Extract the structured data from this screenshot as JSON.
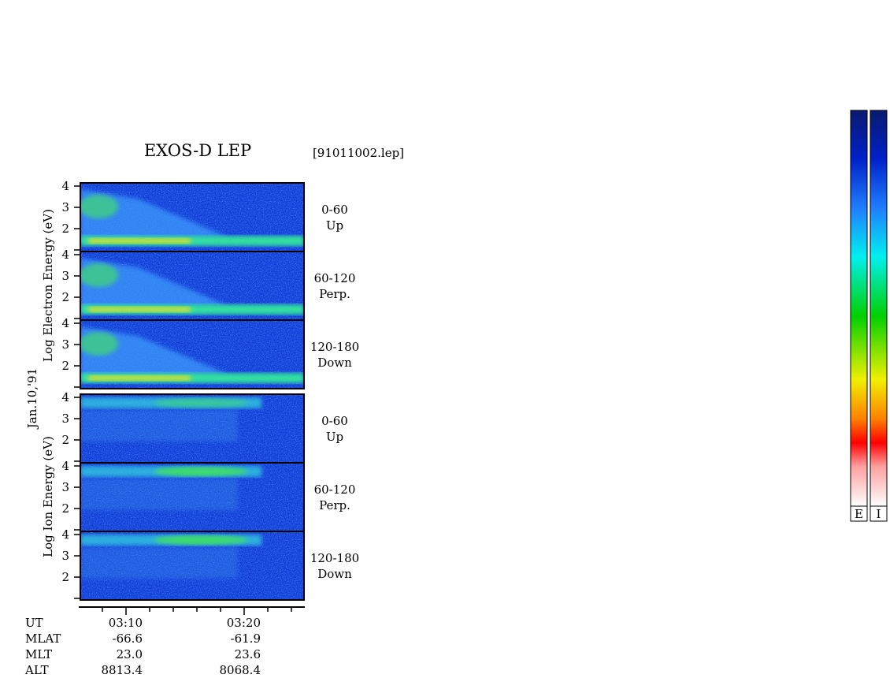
{
  "title": "EXOS-D LEP",
  "file": "[91011002.lep]",
  "date": "Jan.10,'91",
  "yticks": [
    2,
    3,
    4
  ],
  "groups": [
    {
      "axis_label": "Log Electron Energy (eV)",
      "panels": [
        {
          "angle": "0-60",
          "direction": "Up"
        },
        {
          "angle": "60-120",
          "direction": "Perp."
        },
        {
          "angle": "120-180",
          "direction": "Down"
        }
      ]
    },
    {
      "axis_label": "Log Ion Energy (eV)",
      "panels": [
        {
          "angle": "0-60",
          "direction": "Up"
        },
        {
          "angle": "60-120",
          "direction": "Perp."
        },
        {
          "angle": "120-180",
          "direction": "Down"
        }
      ]
    }
  ],
  "ephemeris": {
    "rows": [
      [
        "UT",
        "03:10",
        "03:20"
      ],
      [
        "MLAT",
        "-66.6",
        "-61.9"
      ],
      [
        "MLT",
        "23.0",
        "23.6"
      ],
      [
        "ALT",
        "8813.4",
        "8068.4"
      ]
    ]
  },
  "colorbars": [
    "E",
    "I"
  ]
}
